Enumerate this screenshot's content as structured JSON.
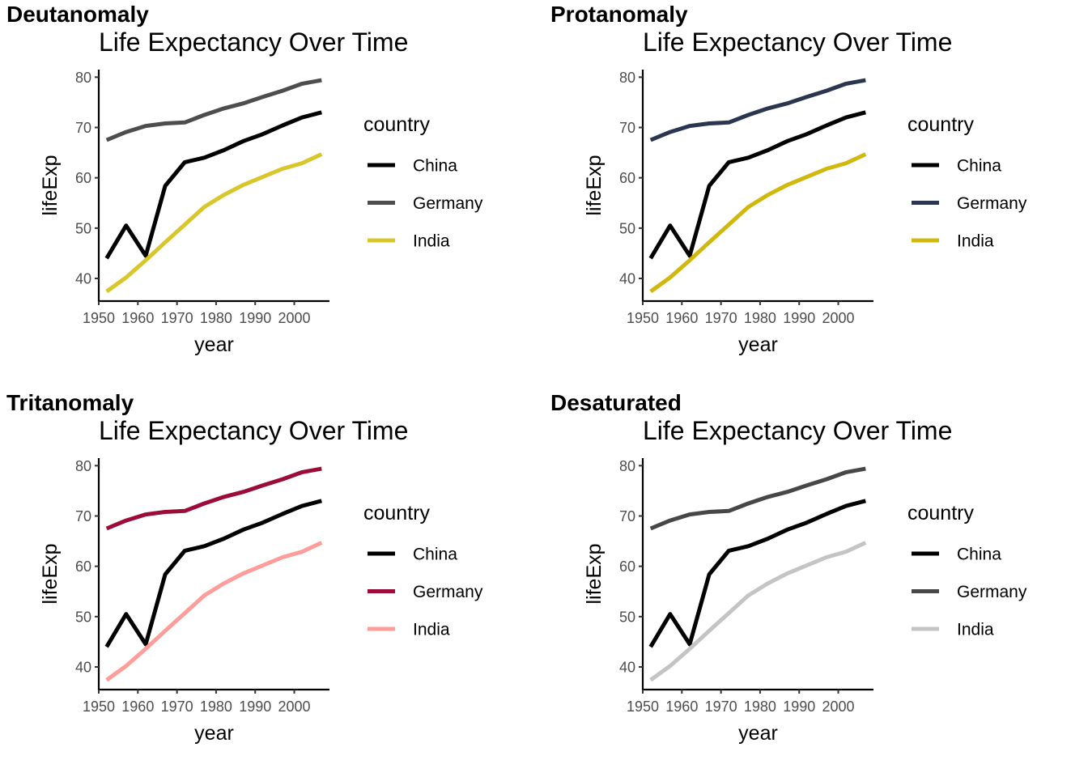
{
  "chart_data": [
    {
      "type": "line",
      "panel_label": "Deutanomaly",
      "title": "Life Expectancy Over Time",
      "xlabel": "year",
      "ylabel": "lifeExp",
      "xlim": [
        1950,
        2009
      ],
      "ylim": [
        35.5,
        81.5
      ],
      "x_ticks": [
        1950,
        1960,
        1970,
        1980,
        1990,
        2000
      ],
      "y_ticks": [
        40,
        50,
        60,
        70,
        80
      ],
      "legend_title": "country",
      "legend_position": "right",
      "grid": false,
      "x": [
        1952,
        1957,
        1962,
        1967,
        1972,
        1977,
        1982,
        1987,
        1992,
        1997,
        2002,
        2007
      ],
      "series": [
        {
          "name": "China",
          "color": "#000000",
          "values": [
            44.0,
            50.5,
            44.5,
            58.4,
            63.1,
            64.0,
            65.5,
            67.3,
            68.7,
            70.4,
            72.0,
            73.0
          ]
        },
        {
          "name": "Germany",
          "color": "#4d4d4d",
          "values": [
            67.5,
            69.1,
            70.3,
            70.8,
            71.0,
            72.5,
            73.8,
            74.8,
            76.1,
            77.3,
            78.7,
            79.4
          ]
        },
        {
          "name": "India",
          "color": "#d9c62a",
          "values": [
            37.4,
            40.2,
            43.6,
            47.2,
            50.7,
            54.2,
            56.6,
            58.6,
            60.2,
            61.8,
            62.9,
            64.7
          ]
        }
      ]
    },
    {
      "type": "line",
      "panel_label": "Protanomaly",
      "title": "Life Expectancy Over Time",
      "xlabel": "year",
      "ylabel": "lifeExp",
      "xlim": [
        1950,
        2009
      ],
      "ylim": [
        35.5,
        81.5
      ],
      "x_ticks": [
        1950,
        1960,
        1970,
        1980,
        1990,
        2000
      ],
      "y_ticks": [
        40,
        50,
        60,
        70,
        80
      ],
      "legend_title": "country",
      "legend_position": "right",
      "grid": false,
      "x": [
        1952,
        1957,
        1962,
        1967,
        1972,
        1977,
        1982,
        1987,
        1992,
        1997,
        2002,
        2007
      ],
      "series": [
        {
          "name": "China",
          "color": "#000000",
          "values": [
            44.0,
            50.5,
            44.5,
            58.4,
            63.1,
            64.0,
            65.5,
            67.3,
            68.7,
            70.4,
            72.0,
            73.0
          ]
        },
        {
          "name": "Germany",
          "color": "#2b3550",
          "values": [
            67.5,
            69.1,
            70.3,
            70.8,
            71.0,
            72.5,
            73.8,
            74.8,
            76.1,
            77.3,
            78.7,
            79.4
          ]
        },
        {
          "name": "India",
          "color": "#d1b80c",
          "values": [
            37.4,
            40.2,
            43.6,
            47.2,
            50.7,
            54.2,
            56.6,
            58.6,
            60.2,
            61.8,
            62.9,
            64.7
          ]
        }
      ]
    },
    {
      "type": "line",
      "panel_label": "Tritanomaly",
      "title": "Life Expectancy Over Time",
      "xlabel": "year",
      "ylabel": "lifeExp",
      "xlim": [
        1950,
        2009
      ],
      "ylim": [
        35.5,
        81.5
      ],
      "x_ticks": [
        1950,
        1960,
        1970,
        1980,
        1990,
        2000
      ],
      "y_ticks": [
        40,
        50,
        60,
        70,
        80
      ],
      "legend_title": "country",
      "legend_position": "right",
      "grid": false,
      "x": [
        1952,
        1957,
        1962,
        1967,
        1972,
        1977,
        1982,
        1987,
        1992,
        1997,
        2002,
        2007
      ],
      "series": [
        {
          "name": "China",
          "color": "#000000",
          "values": [
            44.0,
            50.5,
            44.5,
            58.4,
            63.1,
            64.0,
            65.5,
            67.3,
            68.7,
            70.4,
            72.0,
            73.0
          ]
        },
        {
          "name": "Germany",
          "color": "#9b0d38",
          "values": [
            67.5,
            69.1,
            70.3,
            70.8,
            71.0,
            72.5,
            73.8,
            74.8,
            76.1,
            77.3,
            78.7,
            79.4
          ]
        },
        {
          "name": "India",
          "color": "#ff9d9a",
          "values": [
            37.4,
            40.2,
            43.6,
            47.2,
            50.7,
            54.2,
            56.6,
            58.6,
            60.2,
            61.8,
            62.9,
            64.7
          ]
        }
      ]
    },
    {
      "type": "line",
      "panel_label": "Desaturated",
      "title": "Life Expectancy Over Time",
      "xlabel": "year",
      "ylabel": "lifeExp",
      "xlim": [
        1950,
        2009
      ],
      "ylim": [
        35.5,
        81.5
      ],
      "x_ticks": [
        1950,
        1960,
        1970,
        1980,
        1990,
        2000
      ],
      "y_ticks": [
        40,
        50,
        60,
        70,
        80
      ],
      "legend_title": "country",
      "legend_position": "right",
      "grid": false,
      "x": [
        1952,
        1957,
        1962,
        1967,
        1972,
        1977,
        1982,
        1987,
        1992,
        1997,
        2002,
        2007
      ],
      "series": [
        {
          "name": "China",
          "color": "#000000",
          "values": [
            44.0,
            50.5,
            44.5,
            58.4,
            63.1,
            64.0,
            65.5,
            67.3,
            68.7,
            70.4,
            72.0,
            73.0
          ]
        },
        {
          "name": "Germany",
          "color": "#474747",
          "values": [
            67.5,
            69.1,
            70.3,
            70.8,
            71.0,
            72.5,
            73.8,
            74.8,
            76.1,
            77.3,
            78.7,
            79.4
          ]
        },
        {
          "name": "India",
          "color": "#c4c4c4",
          "values": [
            37.4,
            40.2,
            43.6,
            47.2,
            50.7,
            54.2,
            56.6,
            58.6,
            60.2,
            61.8,
            62.9,
            64.7
          ]
        }
      ]
    }
  ]
}
